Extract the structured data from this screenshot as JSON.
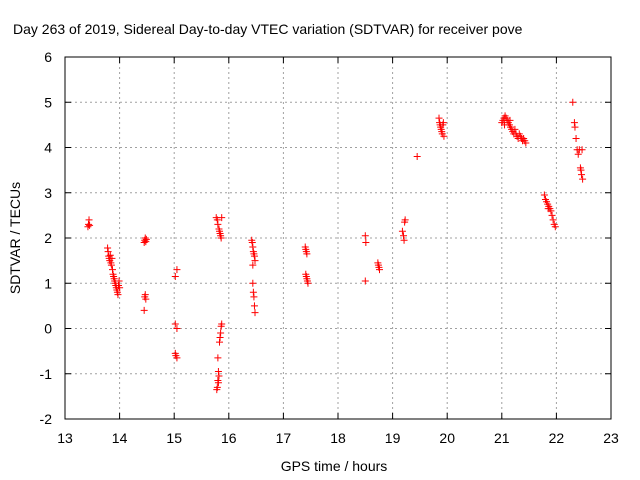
{
  "chart_data": {
    "type": "scatter",
    "title": "Day 263 of 2019, Sidereal Day-to-day VTEC variation (SDTVAR) for receiver pove",
    "xlabel": "GPS time / hours",
    "ylabel": "SDTVAR / TECUs",
    "xlim": [
      13,
      23
    ],
    "ylim": [
      -2,
      6
    ],
    "xticks": [
      "13",
      "14",
      "15",
      "16",
      "17",
      "18",
      "19",
      "20",
      "21",
      "22",
      "23"
    ],
    "yticks": [
      "-2",
      "-1",
      "0",
      "1",
      "2",
      "3",
      "4",
      "5",
      "6"
    ],
    "grid": true,
    "marker": "+",
    "series": [
      {
        "name": "SDTVAR",
        "color": "#ff0000",
        "points": [
          [
            13.42,
            2.25
          ],
          [
            13.43,
            2.3
          ],
          [
            13.44,
            2.4
          ],
          [
            13.45,
            2.28
          ],
          [
            13.78,
            1.78
          ],
          [
            13.79,
            1.7
          ],
          [
            13.8,
            1.6
          ],
          [
            13.81,
            1.55
          ],
          [
            13.82,
            1.5
          ],
          [
            13.83,
            1.62
          ],
          [
            13.84,
            1.45
          ],
          [
            13.85,
            1.4
          ],
          [
            13.86,
            1.55
          ],
          [
            13.87,
            1.3
          ],
          [
            13.88,
            1.2
          ],
          [
            13.89,
            1.15
          ],
          [
            13.9,
            1.1
          ],
          [
            13.91,
            1.05
          ],
          [
            13.92,
            1.0
          ],
          [
            13.93,
            0.95
          ],
          [
            13.94,
            0.9
          ],
          [
            13.95,
            0.85
          ],
          [
            13.96,
            0.8
          ],
          [
            13.97,
            0.75
          ],
          [
            13.98,
            0.95
          ],
          [
            13.99,
            1.05
          ],
          [
            14.0,
            0.9
          ],
          [
            14.45,
            1.9
          ],
          [
            14.46,
            1.95
          ],
          [
            14.47,
            2.0
          ],
          [
            14.48,
            1.92
          ],
          [
            14.49,
            1.97
          ],
          [
            14.46,
            0.7
          ],
          [
            14.47,
            0.75
          ],
          [
            14.48,
            0.65
          ],
          [
            14.45,
            0.4
          ],
          [
            15.02,
            1.15
          ],
          [
            15.05,
            1.3
          ],
          [
            15.02,
            0.1
          ],
          [
            15.05,
            0.0
          ],
          [
            15.02,
            -0.55
          ],
          [
            15.03,
            -0.6
          ],
          [
            15.05,
            -0.65
          ],
          [
            15.77,
            2.45
          ],
          [
            15.79,
            2.4
          ],
          [
            15.8,
            2.3
          ],
          [
            15.82,
            2.2
          ],
          [
            15.83,
            2.15
          ],
          [
            15.84,
            2.1
          ],
          [
            15.85,
            2.05
          ],
          [
            15.86,
            2.0
          ],
          [
            15.87,
            2.45
          ],
          [
            15.8,
            -0.65
          ],
          [
            15.81,
            -0.95
          ],
          [
            15.82,
            -1.05
          ],
          [
            15.8,
            -1.15
          ],
          [
            15.81,
            -1.2
          ],
          [
            15.79,
            -1.3
          ],
          [
            15.78,
            -1.35
          ],
          [
            15.83,
            -0.3
          ],
          [
            15.84,
            -0.2
          ],
          [
            15.85,
            -0.1
          ],
          [
            15.86,
            0.05
          ],
          [
            15.87,
            0.1
          ],
          [
            16.42,
            1.95
          ],
          [
            16.43,
            1.9
          ],
          [
            16.44,
            1.8
          ],
          [
            16.45,
            1.7
          ],
          [
            16.46,
            1.65
          ],
          [
            16.47,
            1.6
          ],
          [
            16.48,
            1.5
          ],
          [
            16.44,
            1.4
          ],
          [
            16.44,
            1.0
          ],
          [
            16.45,
            0.8
          ],
          [
            16.46,
            0.7
          ],
          [
            16.47,
            0.5
          ],
          [
            16.48,
            0.35
          ],
          [
            17.4,
            1.8
          ],
          [
            17.41,
            1.75
          ],
          [
            17.42,
            1.7
          ],
          [
            17.43,
            1.65
          ],
          [
            17.41,
            1.2
          ],
          [
            17.42,
            1.15
          ],
          [
            17.43,
            1.1
          ],
          [
            17.44,
            1.05
          ],
          [
            17.45,
            1.0
          ],
          [
            18.5,
            2.05
          ],
          [
            18.51,
            1.9
          ],
          [
            18.5,
            1.05
          ],
          [
            18.73,
            1.45
          ],
          [
            18.74,
            1.4
          ],
          [
            18.75,
            1.35
          ],
          [
            18.76,
            1.3
          ],
          [
            19.18,
            2.15
          ],
          [
            19.2,
            2.05
          ],
          [
            19.21,
            1.95
          ],
          [
            19.22,
            2.35
          ],
          [
            19.23,
            2.4
          ],
          [
            19.45,
            3.8
          ],
          [
            19.85,
            4.65
          ],
          [
            19.86,
            4.55
          ],
          [
            19.87,
            4.5
          ],
          [
            19.88,
            4.45
          ],
          [
            19.89,
            4.4
          ],
          [
            19.9,
            4.35
          ],
          [
            19.91,
            4.3
          ],
          [
            19.92,
            4.5
          ],
          [
            19.93,
            4.55
          ],
          [
            19.94,
            4.25
          ],
          [
            21.0,
            4.55
          ],
          [
            21.02,
            4.6
          ],
          [
            21.04,
            4.65
          ],
          [
            21.06,
            4.7
          ],
          [
            21.08,
            4.65
          ],
          [
            21.1,
            4.6
          ],
          [
            21.12,
            4.55
          ],
          [
            21.14,
            4.5
          ],
          [
            21.16,
            4.45
          ],
          [
            21.18,
            4.4
          ],
          [
            21.2,
            4.35
          ],
          [
            21.22,
            4.3
          ],
          [
            21.24,
            4.4
          ],
          [
            21.26,
            4.3
          ],
          [
            21.28,
            4.25
          ],
          [
            21.3,
            4.2
          ],
          [
            21.32,
            4.3
          ],
          [
            21.34,
            4.25
          ],
          [
            21.36,
            4.2
          ],
          [
            21.38,
            4.15
          ],
          [
            21.4,
            4.2
          ],
          [
            21.42,
            4.15
          ],
          [
            21.44,
            4.1
          ],
          [
            21.05,
            4.5
          ],
          [
            21.15,
            4.6
          ],
          [
            21.78,
            2.95
          ],
          [
            21.8,
            2.85
          ],
          [
            21.82,
            2.8
          ],
          [
            21.84,
            2.75
          ],
          [
            21.86,
            2.7
          ],
          [
            21.88,
            2.65
          ],
          [
            21.9,
            2.6
          ],
          [
            21.92,
            2.5
          ],
          [
            21.94,
            2.4
          ],
          [
            21.96,
            2.3
          ],
          [
            21.98,
            2.25
          ],
          [
            21.85,
            2.65
          ],
          [
            22.3,
            5.0
          ],
          [
            22.33,
            4.55
          ],
          [
            22.34,
            4.45
          ],
          [
            22.36,
            4.2
          ],
          [
            22.38,
            3.95
          ],
          [
            22.4,
            3.85
          ],
          [
            22.42,
            3.95
          ],
          [
            22.44,
            3.55
          ],
          [
            22.45,
            3.5
          ],
          [
            22.46,
            3.4
          ],
          [
            22.48,
            3.3
          ],
          [
            22.47,
            3.95
          ]
        ]
      }
    ]
  }
}
